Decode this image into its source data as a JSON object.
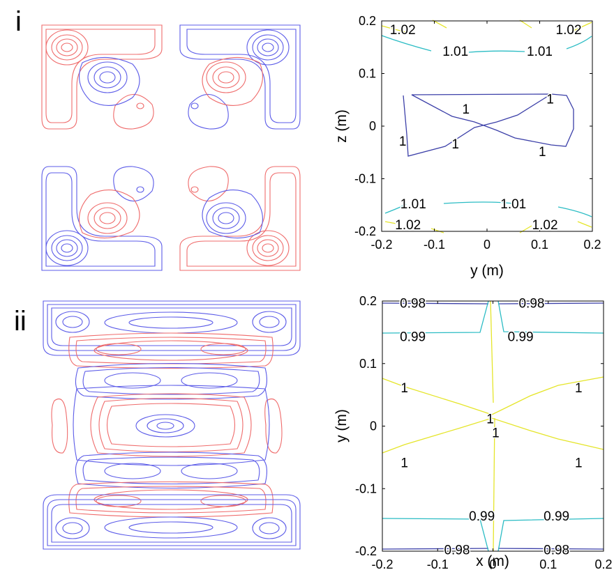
{
  "panels": [
    {
      "label": "i"
    },
    {
      "label": "ii"
    }
  ],
  "colors": {
    "positive_contour": "#ef6b6b",
    "negative_contour": "#5b5be8",
    "level_low": "#3b3fa8",
    "level_mid": "#2bbcc4",
    "level_high": "#e5e52a",
    "axes": "#000000"
  },
  "chart_data": [
    {
      "type": "contour",
      "panel": "i",
      "title": "",
      "xlabel": "y (m)",
      "ylabel": "z (m)",
      "xlim": [
        -0.2,
        0.2
      ],
      "ylim": [
        -0.2,
        0.2
      ],
      "xticks": [
        "-0.2",
        "-0.1",
        "0",
        "0.1",
        "0.2"
      ],
      "yticks": [
        "-0.2",
        "-0.1",
        "0",
        "0.1",
        "0.2"
      ],
      "grid": false,
      "contour_labels": [
        {
          "text": "1.02",
          "x": -0.16,
          "y": 0.184
        },
        {
          "text": "1.02",
          "x": 0.155,
          "y": 0.184
        },
        {
          "text": "1.01",
          "x": -0.06,
          "y": 0.143
        },
        {
          "text": "1.01",
          "x": 0.1,
          "y": 0.143
        },
        {
          "text": "1",
          "x": -0.04,
          "y": 0.033
        },
        {
          "text": "1",
          "x": 0.12,
          "y": 0.052
        },
        {
          "text": "1",
          "x": -0.16,
          "y": -0.028
        },
        {
          "text": "1",
          "x": -0.06,
          "y": -0.033
        },
        {
          "text": "1",
          "x": 0.105,
          "y": -0.048
        },
        {
          "text": "1.01",
          "x": -0.14,
          "y": -0.147
        },
        {
          "text": "1.01",
          "x": 0.05,
          "y": -0.147
        },
        {
          "text": "1.02",
          "x": -0.15,
          "y": -0.187
        },
        {
          "text": "1.02",
          "x": 0.11,
          "y": -0.187
        }
      ]
    },
    {
      "type": "contour",
      "panel": "ii",
      "title": "",
      "xlabel": "x (m)",
      "ylabel": "y (m)",
      "xlim": [
        -0.2,
        0.2
      ],
      "ylim": [
        -0.2,
        0.2
      ],
      "xticks": [
        "-0.2",
        "-0.1",
        "0",
        "0.1",
        "0.2"
      ],
      "yticks": [
        "-0.2",
        "-0.1",
        "0",
        "0.1",
        "0.2"
      ],
      "grid": false,
      "contour_labels": [
        {
          "text": "0.98",
          "x": -0.145,
          "y": 0.197
        },
        {
          "text": "0.98",
          "x": 0.07,
          "y": 0.197
        },
        {
          "text": "0.99",
          "x": -0.145,
          "y": 0.144
        },
        {
          "text": "0.99",
          "x": 0.05,
          "y": 0.144
        },
        {
          "text": "1",
          "x": -0.16,
          "y": 0.062
        },
        {
          "text": "1",
          "x": 0.155,
          "y": 0.062
        },
        {
          "text": "1",
          "x": -0.005,
          "y": 0.012
        },
        {
          "text": "1",
          "x": 0.005,
          "y": -0.01
        },
        {
          "text": "1",
          "x": -0.16,
          "y": -0.058
        },
        {
          "text": "1",
          "x": 0.155,
          "y": -0.058
        },
        {
          "text": "0.99",
          "x": -0.02,
          "y": -0.143
        },
        {
          "text": "0.99",
          "x": 0.115,
          "y": -0.143
        },
        {
          "text": "0.98",
          "x": -0.065,
          "y": -0.197
        },
        {
          "text": "0.98",
          "x": 0.115,
          "y": -0.197
        }
      ]
    }
  ]
}
